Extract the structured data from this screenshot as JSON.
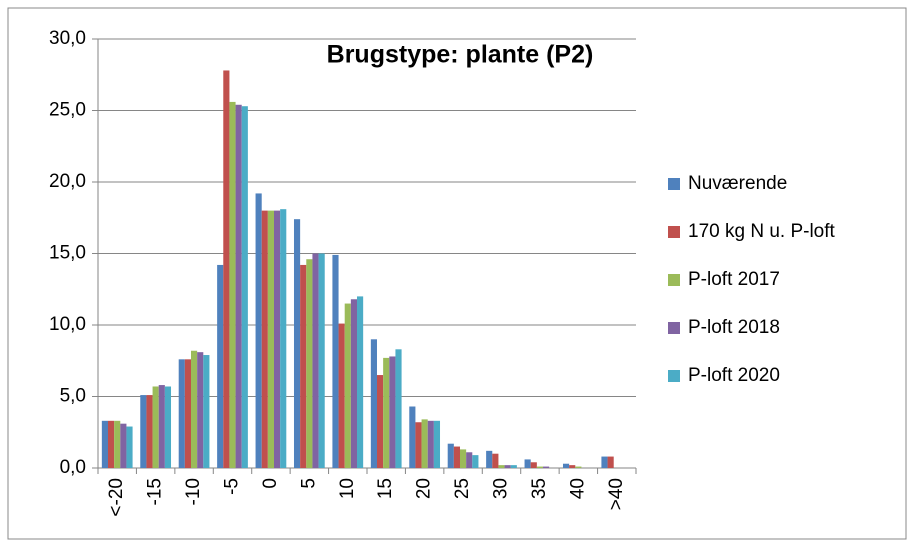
{
  "chart_data": {
    "type": "bar",
    "title": "Brugstype: plante (P2)",
    "categories": [
      "<-20",
      "-15",
      "-10",
      "-5",
      "0",
      "5",
      "10",
      "15",
      "20",
      "25",
      "30",
      "35",
      "40",
      ">40"
    ],
    "series": [
      {
        "name": "Nuværende",
        "color": "#4f81bd",
        "values": [
          3.3,
          5.1,
          7.6,
          14.2,
          19.2,
          17.4,
          14.9,
          9.0,
          4.3,
          1.7,
          1.2,
          0.6,
          0.3,
          0.8
        ]
      },
      {
        "name": "170 kg N u. P-loft",
        "color": "#c0504d",
        "values": [
          3.3,
          5.1,
          7.6,
          27.8,
          18.0,
          14.2,
          10.1,
          6.5,
          3.2,
          1.5,
          1.0,
          0.4,
          0.2,
          0.8
        ]
      },
      {
        "name": "P-loft 2017",
        "color": "#9bbb59",
        "values": [
          3.3,
          5.7,
          8.2,
          25.6,
          18.0,
          14.6,
          11.5,
          7.7,
          3.4,
          1.3,
          0.2,
          0.1,
          0.1,
          0
        ]
      },
      {
        "name": "P-loft 2018",
        "color": "#8064a2",
        "values": [
          3.1,
          5.8,
          8.1,
          25.4,
          18.0,
          15.0,
          11.8,
          7.8,
          3.3,
          1.1,
          0.2,
          0.1,
          0,
          0
        ]
      },
      {
        "name": "P-loft 2020",
        "color": "#4bacc6",
        "values": [
          2.9,
          5.7,
          7.9,
          25.3,
          18.1,
          15.0,
          12.0,
          8.3,
          3.3,
          0.9,
          0.2,
          0,
          0,
          0
        ]
      }
    ],
    "ylim": [
      0,
      30
    ],
    "yticks": [
      {
        "value": 0,
        "label": "0,0"
      },
      {
        "value": 5,
        "label": "5,0"
      },
      {
        "value": 10,
        "label": "10,0"
      },
      {
        "value": 15,
        "label": "15,0"
      },
      {
        "value": 20,
        "label": "20,0"
      },
      {
        "value": 25,
        "label": "25,0"
      },
      {
        "value": 30,
        "label": "30,0"
      }
    ],
    "grid": true,
    "legend": "right"
  }
}
